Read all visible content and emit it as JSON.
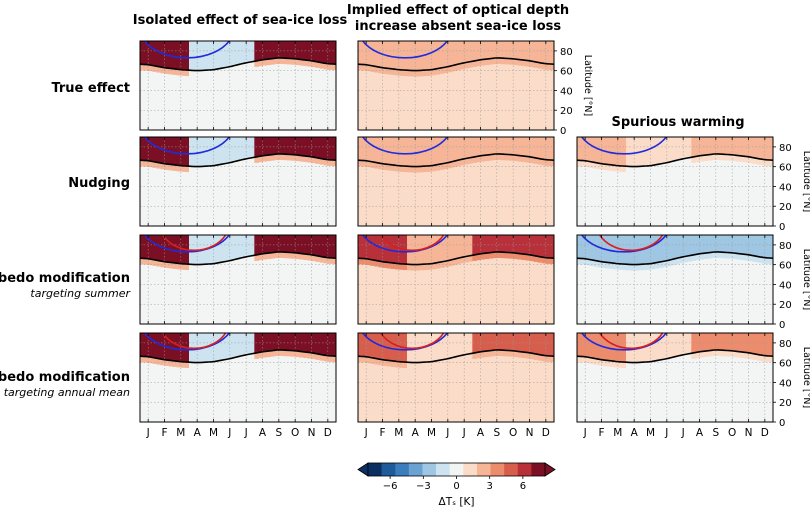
{
  "figure": {
    "colormap": [
      "#0b2f60",
      "#1f5a9a",
      "#3b7dbd",
      "#6aa3d2",
      "#9fc6e3",
      "#cde3f0",
      "#f3f5f4",
      "#fbdcc9",
      "#f6b597",
      "#ec8c6c",
      "#d75d4d",
      "#b7303a",
      "#7b0f24"
    ],
    "colorbar": {
      "ticks": [
        "−6",
        "−3",
        "0",
        "3",
        "6"
      ],
      "tick_values": [
        -6,
        -3,
        0,
        3,
        6
      ],
      "range": [
        -8,
        8
      ],
      "label": "ΔTₛ [K]"
    },
    "col_titles": [
      "Isolated effect of sea-ice loss",
      "Implied effect of optical depth\nincrease absent sea-ice loss",
      "Spurious warming"
    ],
    "rows": [
      {
        "title": "True effect",
        "subtitle": ""
      },
      {
        "title": "Nudging",
        "subtitle": ""
      },
      {
        "title": "Albedo modification",
        "subtitle": "targeting summer"
      },
      {
        "title": "Albedo modification",
        "subtitle": "targeting annual mean"
      }
    ],
    "month_ticks": [
      "J",
      "F",
      "M",
      "A",
      "M",
      "J",
      "J",
      "A",
      "S",
      "O",
      "N",
      "D"
    ],
    "lat_ticks": [
      "0",
      "20",
      "40",
      "60",
      "80"
    ],
    "lat_label": "Latitude [°N]"
  },
  "chart_data": {
    "type": "heatmap",
    "x": "month",
    "y": "latitude",
    "xlabel": "",
    "ylabel": "Latitude [°N]",
    "ylim": [
      0,
      90
    ],
    "x_categories": [
      "J",
      "F",
      "M",
      "A",
      "M",
      "J",
      "J",
      "A",
      "S",
      "O",
      "N",
      "D"
    ],
    "value_label": "ΔTₛ [K]",
    "value_range": [
      -8,
      8
    ],
    "series": [
      {
        "name": "black contour (sea-ice edge / boundary latitude)",
        "color": "#000000",
        "lat": [
          66,
          63,
          61,
          60,
          61,
          64,
          68,
          71,
          73,
          72,
          70,
          67
        ]
      },
      {
        "name": "blue contour (lower extent, reference)",
        "color": "#1f2bdc",
        "arc_lat_min": 69,
        "months": [
          "J",
          "JUN"
        ]
      },
      {
        "name": "red contour (lower extent, experiment)",
        "color": "#d81e1e",
        "arc_lat_min": 71,
        "months": [
          "F",
          "JUN"
        ]
      }
    ],
    "panels": [
      {
        "row": "True effect",
        "col": "Isolated effect of sea-ice loss",
        "base_K": 0,
        "polar_K": 8,
        "melt_K": -1,
        "blue": true,
        "red": false
      },
      {
        "row": "True effect",
        "col": "Implied effect of optical depth increase absent sea-ice loss",
        "base_K": 1.8,
        "polar_K": 3,
        "melt_K": 2,
        "blue": true,
        "red": false
      },
      {
        "row": "Nudging",
        "col": "Isolated effect of sea-ice loss",
        "base_K": 0,
        "polar_K": 8,
        "melt_K": -1,
        "blue": true,
        "red": false
      },
      {
        "row": "Nudging",
        "col": "Implied effect of optical depth increase absent sea-ice loss",
        "base_K": 1.8,
        "polar_K": 3,
        "melt_K": 2,
        "blue": true,
        "red": false
      },
      {
        "row": "Nudging",
        "col": "Spurious warming",
        "base_K": 0,
        "polar_K": 3,
        "melt_K": 1,
        "blue": true,
        "red": false
      },
      {
        "row": "Albedo modification targeting summer",
        "col": "Isolated effect of sea-ice loss",
        "base_K": 0,
        "polar_K": 8,
        "melt_K": -1,
        "blue": true,
        "red": true
      },
      {
        "row": "Albedo modification targeting summer",
        "col": "Implied effect of optical depth increase absent sea-ice loss",
        "base_K": 1.8,
        "polar_K": 6,
        "melt_K": 2,
        "blue": true,
        "red": true
      },
      {
        "row": "Albedo modification targeting summer",
        "col": "Spurious warming",
        "base_K": 0,
        "polar_K": -3,
        "melt_K": -2,
        "blue": true,
        "red": true
      },
      {
        "row": "Albedo modification targeting annual mean",
        "col": "Isolated effect of sea-ice loss",
        "base_K": 0,
        "polar_K": 8,
        "melt_K": -1,
        "blue": true,
        "red": true
      },
      {
        "row": "Albedo modification targeting annual mean",
        "col": "Implied effect of optical depth increase absent sea-ice loss",
        "base_K": 1.8,
        "polar_K": 5,
        "melt_K": 1,
        "blue": true,
        "red": true
      },
      {
        "row": "Albedo modification targeting annual mean",
        "col": "Spurious warming",
        "base_K": 0,
        "polar_K": 4,
        "melt_K": 1,
        "blue": true,
        "red": true
      }
    ]
  }
}
